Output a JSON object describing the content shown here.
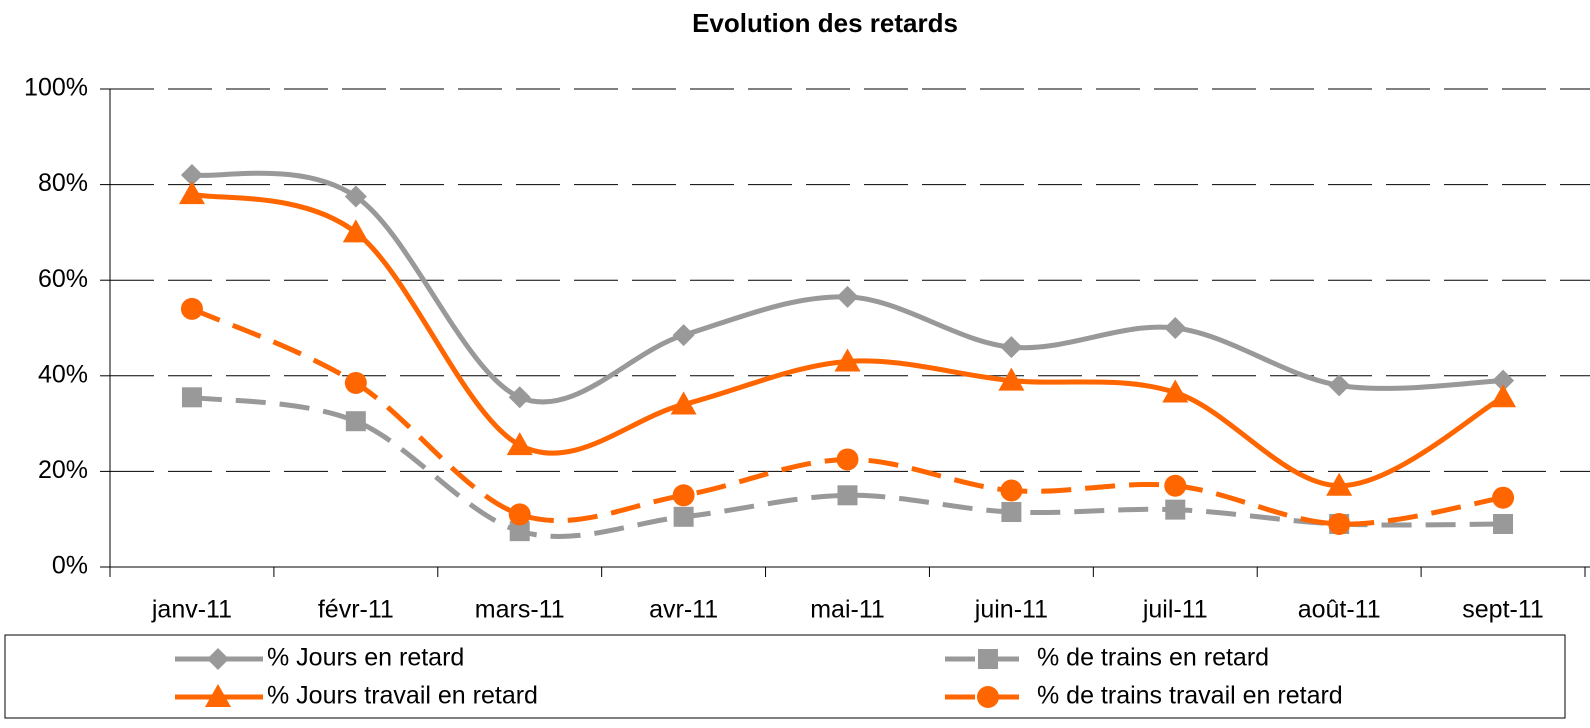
{
  "chart_data": {
    "type": "line",
    "title": "Evolution des retards",
    "categories": [
      "janv-11",
      "févr-11",
      "mars-11",
      "avr-11",
      "mai-11",
      "juin-11",
      "juil-11",
      "août-11",
      "sept-11"
    ],
    "ylim": [
      0,
      100
    ],
    "yticks": [
      {
        "value": 0,
        "label": "0%"
      },
      {
        "value": 20,
        "label": "20%"
      },
      {
        "value": 40,
        "label": "40%"
      },
      {
        "value": 60,
        "label": "60%"
      },
      {
        "value": 80,
        "label": "80%"
      },
      {
        "value": 100,
        "label": "100%"
      }
    ],
    "grid": true,
    "smooth": true,
    "series": [
      {
        "name": "% Jours en retard",
        "color": "#999999",
        "marker": "diamond",
        "dashed": false,
        "values": [
          82,
          77.5,
          35.5,
          48.5,
          56.5,
          46,
          50,
          38,
          39
        ]
      },
      {
        "name": "% de trains en retard",
        "color": "#999999",
        "marker": "square",
        "dashed": true,
        "values": [
          35.5,
          30.5,
          7.5,
          10.5,
          15,
          11.5,
          12,
          9,
          9
        ]
      },
      {
        "name": "% Jours travail en retard",
        "color": "#ff6600",
        "marker": "triangle",
        "dashed": false,
        "values": [
          78,
          70,
          25.5,
          34,
          43,
          39,
          36.5,
          17,
          35.5
        ]
      },
      {
        "name": "% de trains travail en retard",
        "color": "#ff6600",
        "marker": "circle",
        "dashed": true,
        "values": [
          54,
          38.5,
          11,
          15,
          22.5,
          16,
          17,
          9,
          14.5
        ]
      }
    ]
  }
}
